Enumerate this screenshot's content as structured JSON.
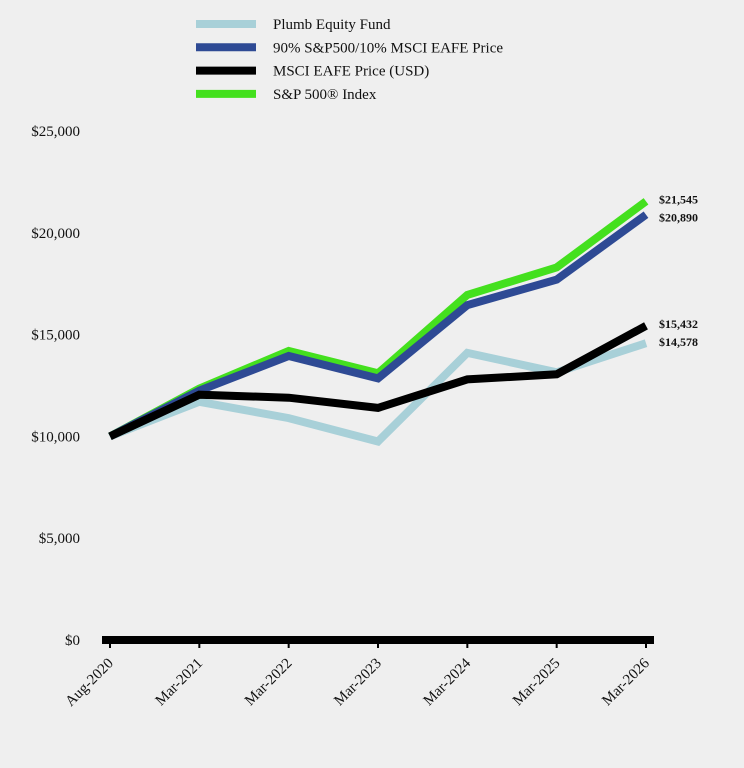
{
  "chart_data": {
    "type": "line",
    "categories": [
      "Aug-2020",
      "Mar-2021",
      "Mar-2022",
      "Mar-2023",
      "Mar-2024",
      "Mar-2025",
      "Mar-2026"
    ],
    "series": [
      {
        "name": "Plumb Equity Fund",
        "color": "#a8d0d8",
        "values": [
          10000,
          11700,
          10900,
          9750,
          14100,
          13150,
          14578
        ],
        "end_label": "$14,578"
      },
      {
        "name": "90% S&P500/10% MSCI EAFE Price",
        "color": "#2e4a94",
        "values": [
          10000,
          12250,
          13950,
          12850,
          16450,
          17700,
          20890
        ],
        "end_label": "$20,890"
      },
      {
        "name": "MSCI EAFE Price (USD)",
        "color": "#000000",
        "values": [
          10000,
          12050,
          11900,
          11400,
          12800,
          13050,
          15432
        ],
        "end_label": "$15,432"
      },
      {
        "name": "S&P 500® Index",
        "color": "#44e01e",
        "values": [
          10000,
          12350,
          14200,
          13100,
          16950,
          18300,
          21545
        ],
        "end_label": "$21,545"
      }
    ],
    "draw_order": [
      3,
      1,
      0,
      2
    ],
    "yticks": [
      0,
      5000,
      10000,
      15000,
      20000,
      25000
    ],
    "ytick_labels": [
      "$0",
      "$5,000",
      "$10,000",
      "$15,000",
      "$20,000",
      "$25,000"
    ],
    "ylim": [
      0,
      25000
    ],
    "legend_position": "top",
    "grid": false
  }
}
